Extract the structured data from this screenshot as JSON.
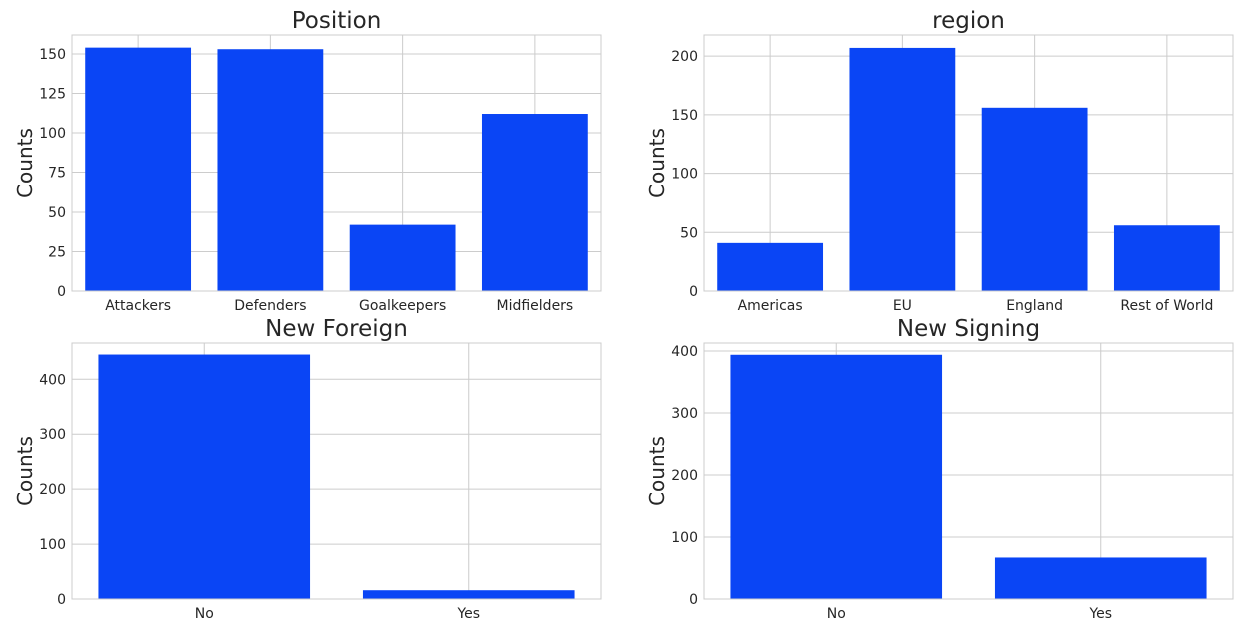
{
  "colors": {
    "bar": "#0a45f5",
    "grid": "#cccccc",
    "text": "#262626"
  },
  "chart_data": [
    {
      "type": "bar",
      "title": "Position",
      "ylabel": "Counts",
      "categories": [
        "Attackers",
        "Defenders",
        "Goalkeepers",
        "Midfielders"
      ],
      "values": [
        154,
        153,
        42,
        112
      ],
      "yticks": [
        0,
        25,
        50,
        75,
        100,
        125,
        150
      ],
      "ylim": [
        0,
        162
      ],
      "grid": true
    },
    {
      "type": "bar",
      "title": "region",
      "ylabel": "Counts",
      "categories": [
        "Americas",
        "EU",
        "England",
        "Rest of World"
      ],
      "values": [
        41,
        207,
        156,
        56
      ],
      "yticks": [
        0,
        50,
        100,
        150,
        200
      ],
      "ylim": [
        0,
        218
      ],
      "grid": true
    },
    {
      "type": "bar",
      "title": "New Foreign",
      "ylabel": "Counts",
      "categories": [
        "No",
        "Yes"
      ],
      "values": [
        445,
        16
      ],
      "yticks": [
        0,
        100,
        200,
        300,
        400
      ],
      "ylim": [
        0,
        466
      ],
      "grid": true
    },
    {
      "type": "bar",
      "title": "New Signing",
      "ylabel": "Counts",
      "categories": [
        "No",
        "Yes"
      ],
      "values": [
        394,
        67
      ],
      "yticks": [
        0,
        100,
        200,
        300,
        400
      ],
      "ylim": [
        0,
        413
      ],
      "grid": true
    }
  ]
}
